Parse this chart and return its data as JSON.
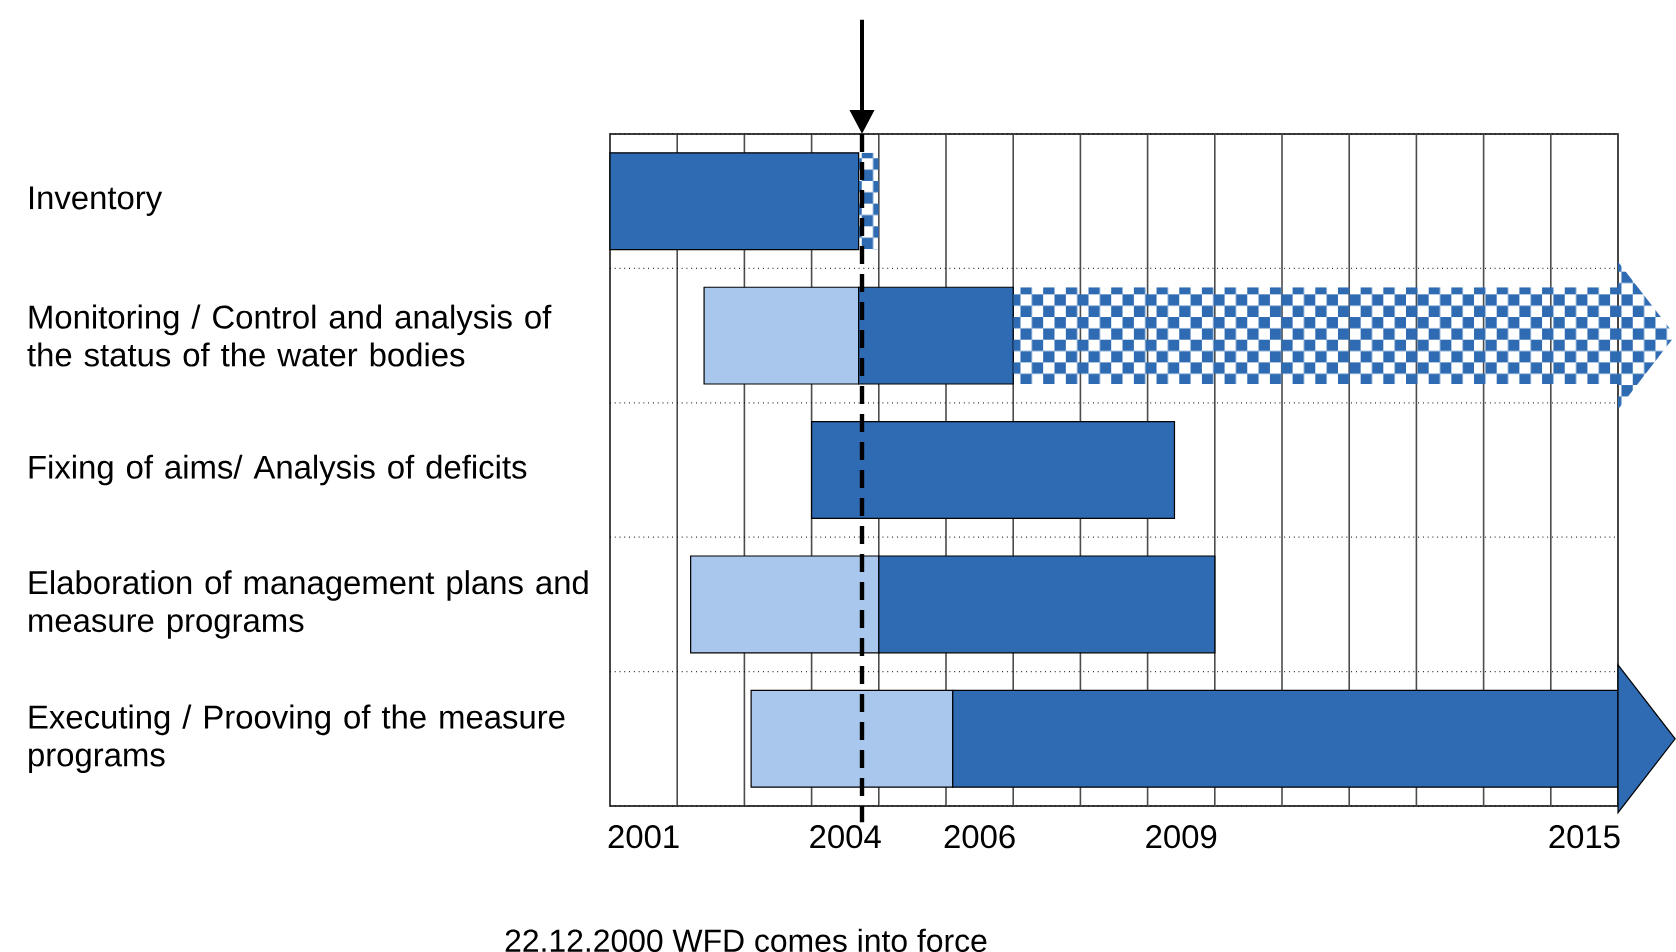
{
  "chart_data": {
    "type": "bar",
    "orientation": "horizontal",
    "categories": [
      "Inventory",
      "Monitoring / Control and analysis of the status of the water bodies",
      "Fixing of aims/ Analysis of deficits",
      "Elaboration of management plans and measure programs",
      "Executing / Prooving of the measure programs"
    ],
    "series": [
      {
        "color": "#a9c6ec",
        "base": [
          null,
          2001.9,
          null,
          2001.7,
          2002.6
        ],
        "values": [
          null,
          2.3,
          null,
          2.8,
          3.0
        ]
      },
      {
        "color": "#2e6bb3",
        "base": [
          2000.5,
          2004.2,
          2003.5,
          2004.5,
          2005.6
        ],
        "values": [
          3.7,
          2.3,
          5.4,
          5.0,
          9.9
        ]
      },
      {
        "color": "#2e6bb3",
        "base": [
          2004.2,
          2006.5,
          null,
          null,
          null
        ],
        "values": [
          0.3,
          9.0,
          null,
          null,
          null
        ]
      }
    ],
    "xlim": [
      2000.5,
      2015.5
    ],
    "xticks": [
      {
        "value": 2000.5,
        "label": null
      },
      {
        "value": 2001,
        "label": "2001"
      },
      {
        "value": 2001.5,
        "label": null
      },
      {
        "value": 2002.5,
        "label": null
      },
      {
        "value": 2003.5,
        "label": null
      },
      {
        "value": 2004,
        "label": "2004"
      },
      {
        "value": 2004.5,
        "label": null
      },
      {
        "value": 2005.5,
        "label": null
      },
      {
        "value": 2006,
        "label": "2006"
      },
      {
        "value": 2006.5,
        "label": null
      },
      {
        "value": 2007.5,
        "label": null
      },
      {
        "value": 2008.5,
        "label": null
      },
      {
        "value": 2009,
        "label": "2009"
      },
      {
        "value": 2009.5,
        "label": null
      },
      {
        "value": 2010.5,
        "label": null
      },
      {
        "value": 2011.5,
        "label": null
      },
      {
        "value": 2012.5,
        "label": null
      },
      {
        "value": 2013.5,
        "label": null
      },
      {
        "value": 2014.5,
        "label": null
      },
      {
        "value": 2015,
        "label": "2015"
      },
      {
        "value": 2015.5,
        "label": null
      }
    ],
    "grid": true,
    "ref_lines": [
      {
        "axis": "x",
        "value": 2004.25,
        "label": "22.12.2000 WFD comes into force",
        "line_style": "dashed",
        "color": "#000000"
      }
    ]
  }
}
